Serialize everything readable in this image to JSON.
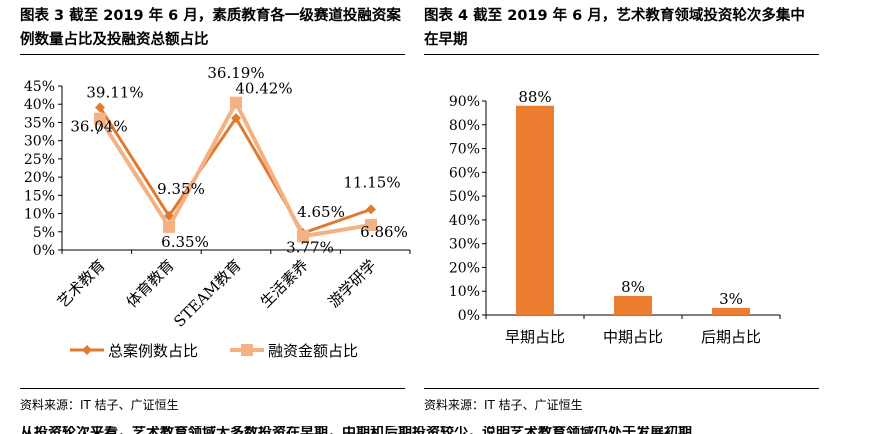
{
  "titles": {
    "left": "图表 3 截至 2019 年 6 月，素质教育各一级赛道投融资案例数量占比及投融资总额占比",
    "right": "图表 4 截至 2019 年 6 月，艺术教育领域投资轮次多集中在早期"
  },
  "sources": {
    "left": "资料来源：IT 桔子、广证恒生",
    "right": "资料来源：IT 桔子、广证恒生"
  },
  "chart_data": [
    {
      "type": "line",
      "categories": [
        "艺术教育",
        "体育教育",
        "STEAM教育",
        "生活素养",
        "游学研学"
      ],
      "ylim": [
        0,
        45
      ],
      "yticks": [
        "0%",
        "5%",
        "10%",
        "15%",
        "20%",
        "25%",
        "30%",
        "35%",
        "40%",
        "45%"
      ],
      "series": [
        {
          "name": "总案例数占比",
          "values": [
            39.11,
            9.35,
            36.19,
            4.65,
            11.15
          ],
          "labels": [
            "39.11%",
            "9.35%",
            "36.19%",
            "4.65%",
            "11.15%"
          ],
          "color": "#e07a2e",
          "marker": "diamond"
        },
        {
          "name": "融资金额占比",
          "values": [
            36.04,
            6.35,
            40.42,
            3.77,
            6.86
          ],
          "labels": [
            "36.04%",
            "6.35%",
            "40.42%",
            "3.77%",
            "6.86%"
          ],
          "color": "#f4b183",
          "marker": "square"
        }
      ],
      "legend": "bottom"
    },
    {
      "type": "bar",
      "categories": [
        "早期占比",
        "中期占比",
        "后期占比"
      ],
      "values": [
        88,
        8,
        3
      ],
      "labels": [
        "88%",
        "8%",
        "3%"
      ],
      "ylim": [
        0,
        90
      ],
      "yticks": [
        "0%",
        "10%",
        "20%",
        "30%",
        "40%",
        "50%",
        "60%",
        "70%",
        "80%",
        "90%"
      ],
      "color": "#ed7d31"
    }
  ],
  "footer_partial": "从投资轮次来看，艺术教育领域大多数投资在早期，中期和后期投资较少，说明艺术教育领域仍处于发展初期"
}
